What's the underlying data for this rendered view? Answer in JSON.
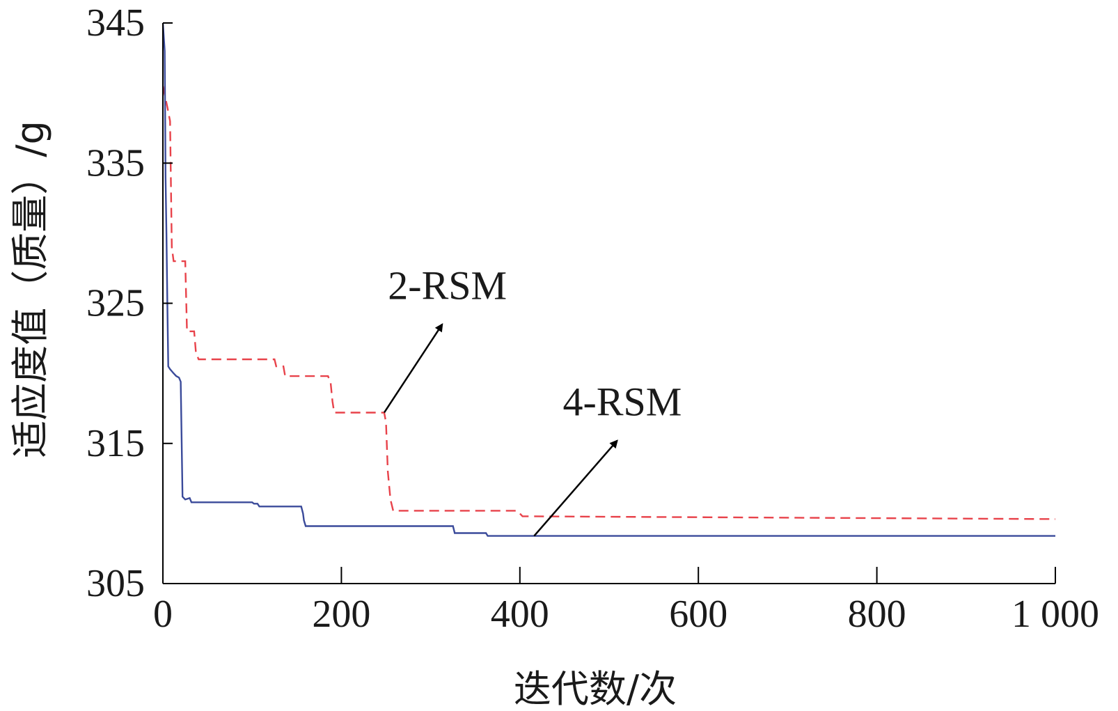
{
  "chart_data": {
    "type": "line",
    "title": "",
    "xlabel": "迭代数/次",
    "ylabel": "适应度值（质量）/g",
    "xlim": [
      0,
      1000
    ],
    "ylim": [
      305,
      345
    ],
    "x_ticks": [
      0,
      200,
      400,
      600,
      800,
      1000
    ],
    "x_tick_labels": [
      "0",
      "200",
      "400",
      "600",
      "800",
      "1 000"
    ],
    "y_ticks": [
      305,
      315,
      325,
      335,
      345
    ],
    "y_tick_labels": [
      "305",
      "315",
      "325",
      "335",
      "345"
    ],
    "grid": false,
    "legend": "none",
    "series": [
      {
        "color": "#e8424a",
        "dash": "dashed",
        "points": [
          [
            0,
            340.5
          ],
          [
            5,
            339
          ],
          [
            8,
            338
          ],
          [
            10,
            329
          ],
          [
            12,
            328
          ],
          [
            25,
            328
          ],
          [
            27,
            323
          ],
          [
            35,
            323
          ],
          [
            37,
            321.5
          ],
          [
            40,
            321
          ],
          [
            125,
            321
          ],
          [
            127,
            320.5
          ],
          [
            135,
            320.5
          ],
          [
            137,
            319.8
          ],
          [
            185,
            319.8
          ],
          [
            188,
            319.3
          ],
          [
            190,
            318
          ],
          [
            192,
            317.2
          ],
          [
            248,
            317.2
          ],
          [
            250,
            316.5
          ],
          [
            252,
            313
          ],
          [
            255,
            311
          ],
          [
            258,
            310.2
          ],
          [
            397,
            310.2
          ],
          [
            400,
            310
          ],
          [
            403,
            309.8
          ],
          [
            1000,
            309.6
          ]
        ]
      },
      {
        "color": "#3a4a9a",
        "dash": "solid",
        "points": [
          [
            0,
            345
          ],
          [
            2,
            343
          ],
          [
            3,
            334
          ],
          [
            4,
            330
          ],
          [
            5,
            325
          ],
          [
            6,
            320.5
          ],
          [
            8,
            320.3
          ],
          [
            12,
            320
          ],
          [
            15,
            319.8
          ],
          [
            18,
            319.7
          ],
          [
            20,
            319.4
          ],
          [
            22,
            311.2
          ],
          [
            25,
            311
          ],
          [
            30,
            311.1
          ],
          [
            32,
            310.8
          ],
          [
            100,
            310.8
          ],
          [
            102,
            310.7
          ],
          [
            106,
            310.7
          ],
          [
            108,
            310.5
          ],
          [
            155,
            310.5
          ],
          [
            157,
            310
          ],
          [
            158,
            309.5
          ],
          [
            160,
            309.1
          ],
          [
            325,
            309.1
          ],
          [
            327,
            308.6
          ],
          [
            362,
            308.6
          ],
          [
            364,
            308.4
          ],
          [
            1000,
            308.4
          ]
        ]
      }
    ],
    "annotations": [
      {
        "text": "2-RSM",
        "arrow_from": [
          248,
          317.2
        ],
        "arrow_to": [
          313,
          323.5
        ]
      },
      {
        "text": "4-RSM",
        "arrow_from": [
          416,
          308.4
        ],
        "arrow_to": [
          509,
          315.2
        ]
      }
    ]
  }
}
